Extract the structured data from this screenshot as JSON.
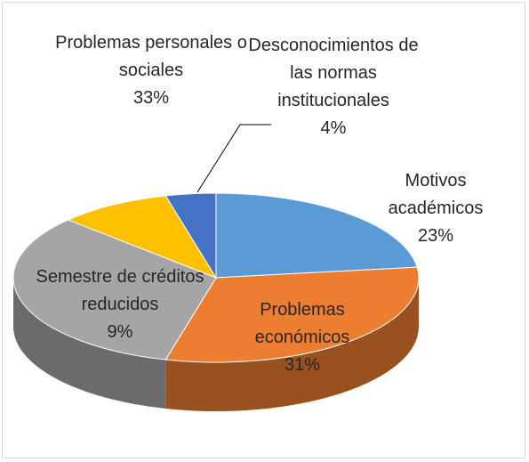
{
  "chart_data": {
    "type": "pie",
    "categories": [
      "Motivos académicos",
      "Problemas económicos",
      "Problemas personales o sociales",
      "Semestre de créditos reducidos",
      "Desconocimientos de las normas institucionales"
    ],
    "values": [
      23,
      31,
      33,
      9,
      4
    ],
    "value_labels": [
      "23%",
      "31%",
      "33%",
      "9%",
      "4%"
    ],
    "colors": [
      "#5b9bd5",
      "#ed7d31",
      "#a5a5a5",
      "#ffc000",
      "#4472c4"
    ]
  }
}
